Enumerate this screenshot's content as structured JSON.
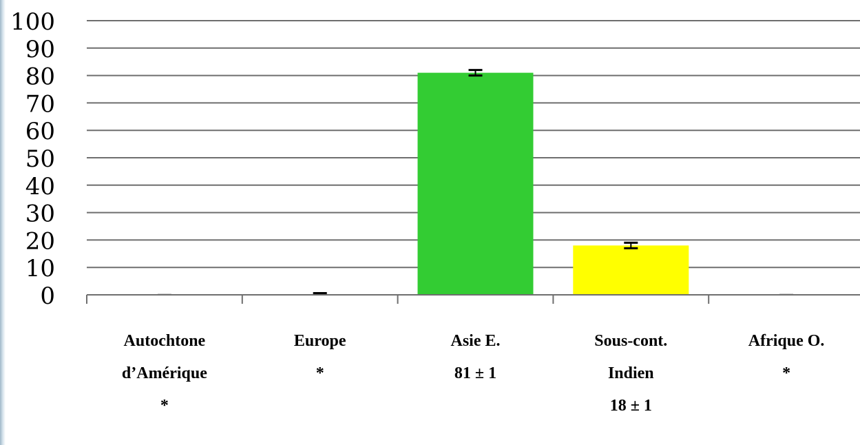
{
  "chart_data": {
    "type": "bar",
    "categories": [
      [
        "Autochtone",
        "d’Amérique",
        "*"
      ],
      [
        "Europe",
        "*"
      ],
      [
        "Asie E.",
        "81 ± 1"
      ],
      [
        "Sous-cont.",
        "Indien",
        "18 ± 1"
      ],
      [
        "Afrique O.",
        "*"
      ]
    ],
    "values": [
      0,
      0.5,
      81,
      18,
      0
    ],
    "errors": [
      0,
      0,
      1,
      1,
      0
    ],
    "bar_colors": [
      "#2ecc71",
      "#2ecc71",
      "#33cc33",
      "#ffff00",
      "#2ecc71"
    ],
    "ylim": [
      0,
      100
    ],
    "yticks": [
      0,
      10,
      20,
      30,
      40,
      50,
      60,
      70,
      80,
      90,
      100
    ],
    "grid": true,
    "title": "",
    "xlabel": "",
    "ylabel": ""
  }
}
